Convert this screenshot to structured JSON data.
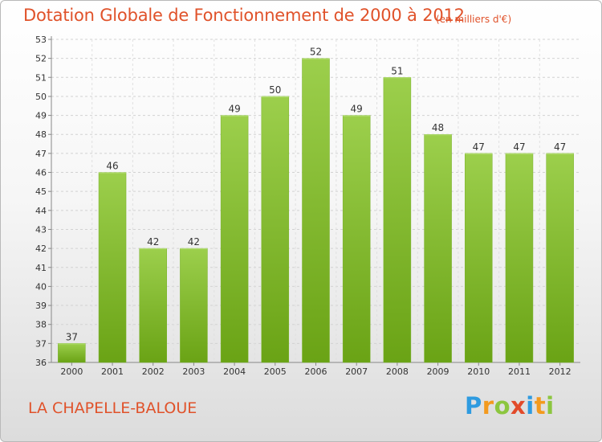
{
  "chart_data": {
    "type": "bar",
    "title": "Dotation Globale de Fonctionnement de 2000 à 2012",
    "subtitle": "(en milliers d'€)",
    "categories": [
      "2000",
      "2001",
      "2002",
      "2003",
      "2004",
      "2005",
      "2006",
      "2007",
      "2008",
      "2009",
      "2010",
      "2011",
      "2012"
    ],
    "values": [
      37,
      46,
      42,
      42,
      49,
      50,
      52,
      49,
      51,
      48,
      47,
      47,
      47
    ],
    "ylim": [
      36,
      53
    ],
    "yticks": [
      36,
      37,
      38,
      39,
      40,
      41,
      42,
      43,
      44,
      45,
      46,
      47,
      48,
      49,
      50,
      51,
      52,
      53
    ],
    "grid": true,
    "bar_color": "#8cc63f"
  },
  "footer": {
    "commune": "LA CHAPELLE-BALOUE",
    "logo_letters": [
      "P",
      "r",
      "o",
      "x",
      "i",
      "t",
      "i"
    ],
    "logo_colors": [
      "#2e9be0",
      "#f39a1e",
      "#8cc63f",
      "#e24a2a",
      "#2e9be0",
      "#f39a1e",
      "#8cc63f"
    ]
  }
}
